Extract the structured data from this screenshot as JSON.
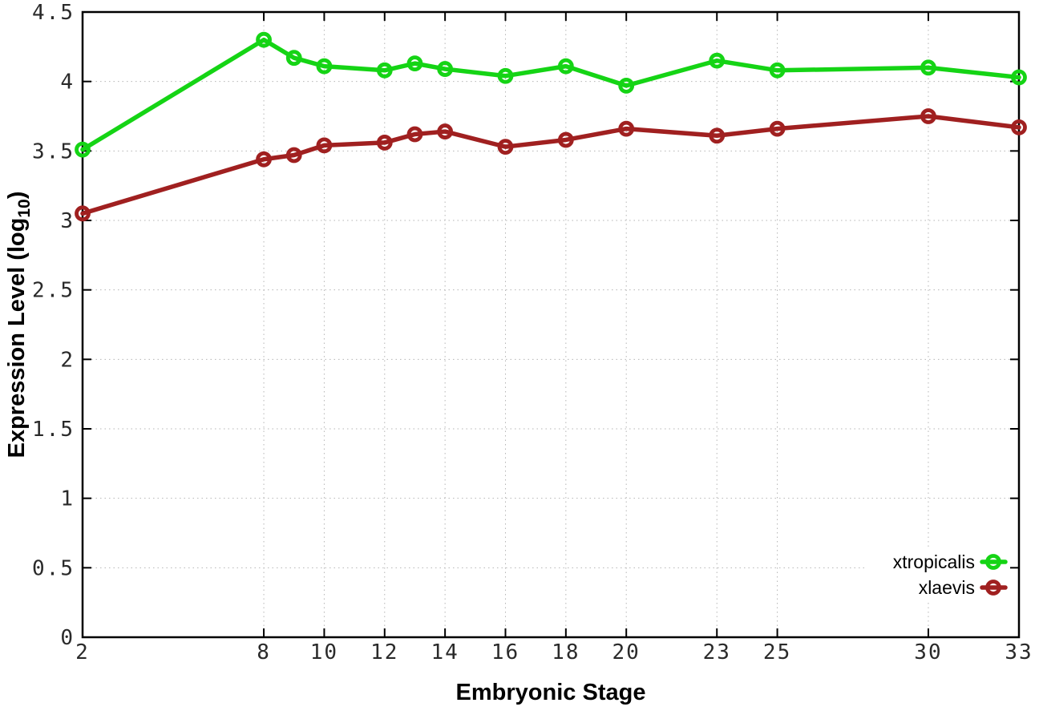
{
  "chart_data": {
    "type": "line",
    "title": "",
    "xlabel": "Embryonic Stage",
    "ylabel_main": "Expression Level (log",
    "ylabel_sub": "10",
    "ylabel_close": ")",
    "xlim": [
      2,
      33
    ],
    "ylim": [
      0,
      4.5
    ],
    "x_ticks": [
      "2",
      "8",
      "10",
      "12",
      "14",
      "16",
      "18",
      "20",
      "23",
      "25",
      "30",
      "33"
    ],
    "y_ticks": [
      "0",
      "0.5",
      "1",
      "1.5",
      "2",
      "2.5",
      "3",
      "3.5",
      "4",
      "4.5"
    ],
    "grid": true,
    "legend_position": "bottom-right",
    "marker": "open-circle",
    "x": [
      2,
      8,
      9,
      10,
      12,
      13,
      14,
      16,
      18,
      20,
      23,
      25,
      30,
      33
    ],
    "series": [
      {
        "name": "xtropicalis",
        "color": "#15d415",
        "values": [
          3.51,
          4.3,
          4.17,
          4.11,
          4.08,
          4.13,
          4.09,
          4.04,
          4.11,
          3.97,
          4.15,
          4.08,
          4.1,
          4.03
        ]
      },
      {
        "name": "xlaevis",
        "color": "#a02020",
        "values": [
          3.05,
          3.44,
          3.47,
          3.54,
          3.56,
          3.62,
          3.64,
          3.53,
          3.58,
          3.66,
          3.61,
          3.66,
          3.75,
          3.67
        ]
      }
    ]
  },
  "colors": {
    "background": "#ffffff",
    "axis": "#000000",
    "grid": "#b5b5b5",
    "tick_text": "#2a2a2a"
  }
}
